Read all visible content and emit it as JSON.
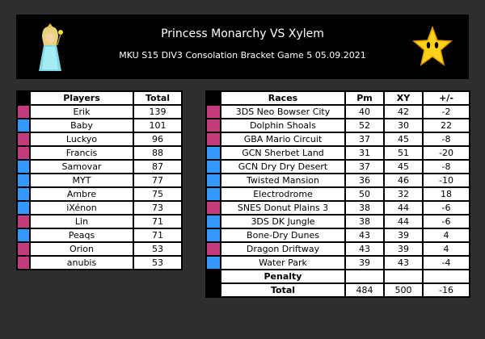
{
  "header": {
    "title": "Princess Monarchy VS Xylem",
    "subtitle": "MKU S15 DIV3 Consolation Bracket Game 5 05.09.2021",
    "left_logo_icon": "princess-rosalina-icon",
    "right_logo_icon": "yellow-star-icon"
  },
  "colors": {
    "team_a": "#c13b7d",
    "team_b": "#3399ff",
    "background": "#2e2e2e"
  },
  "players": {
    "headers": {
      "name": "Players",
      "total": "Total"
    },
    "rows": [
      {
        "team": "a",
        "name": "Erik",
        "total": "139"
      },
      {
        "team": "b",
        "name": "Baby",
        "total": "101"
      },
      {
        "team": "a",
        "name": "Luckyo",
        "total": "96"
      },
      {
        "team": "a",
        "name": "Francis",
        "total": "88"
      },
      {
        "team": "b",
        "name": "Samovar",
        "total": "87"
      },
      {
        "team": "b",
        "name": "MYT",
        "total": "77"
      },
      {
        "team": "b",
        "name": "Ambre",
        "total": "75"
      },
      {
        "team": "b",
        "name": "iXénon",
        "total": "73"
      },
      {
        "team": "a",
        "name": "Lin",
        "total": "71"
      },
      {
        "team": "b",
        "name": "Peaqs",
        "total": "71"
      },
      {
        "team": "a",
        "name": "Orion",
        "total": "53"
      },
      {
        "team": "a",
        "name": "anubis",
        "total": "53"
      }
    ]
  },
  "races": {
    "headers": {
      "race": "Races",
      "pm": "Pm",
      "xy": "XY",
      "diff": "+/-"
    },
    "rows": [
      {
        "team": "a",
        "race": "3DS Neo Bowser City",
        "pm": "40",
        "xy": "42",
        "diff": "-2"
      },
      {
        "team": "a",
        "race": "Dolphin Shoals",
        "pm": "52",
        "xy": "30",
        "diff": "22"
      },
      {
        "team": "a",
        "race": "GBA Mario Circuit",
        "pm": "37",
        "xy": "45",
        "diff": "-8"
      },
      {
        "team": "b",
        "race": "GCN Sherbet Land",
        "pm": "31",
        "xy": "51",
        "diff": "-20"
      },
      {
        "team": "b",
        "race": "GCN Dry Dry Desert",
        "pm": "37",
        "xy": "45",
        "diff": "-8"
      },
      {
        "team": "b",
        "race": "Twisted Mansion",
        "pm": "36",
        "xy": "46",
        "diff": "-10"
      },
      {
        "team": "b",
        "race": "Electrodrome",
        "pm": "50",
        "xy": "32",
        "diff": "18"
      },
      {
        "team": "a",
        "race": "SNES Donut Plains 3",
        "pm": "38",
        "xy": "44",
        "diff": "-6"
      },
      {
        "team": "b",
        "race": "3DS DK Jungle",
        "pm": "38",
        "xy": "44",
        "diff": "-6"
      },
      {
        "team": "b",
        "race": "Bone-Dry Dunes",
        "pm": "43",
        "xy": "39",
        "diff": "4"
      },
      {
        "team": "a",
        "race": "Dragon Driftway",
        "pm": "43",
        "xy": "39",
        "diff": "4"
      },
      {
        "team": "b",
        "race": "Water Park",
        "pm": "39",
        "xy": "43",
        "diff": "-4"
      }
    ],
    "penalty": {
      "label": "Penalty",
      "pm": "",
      "xy": "",
      "diff": ""
    },
    "total": {
      "label": "Total",
      "pm": "484",
      "xy": "500",
      "diff": "-16"
    }
  }
}
